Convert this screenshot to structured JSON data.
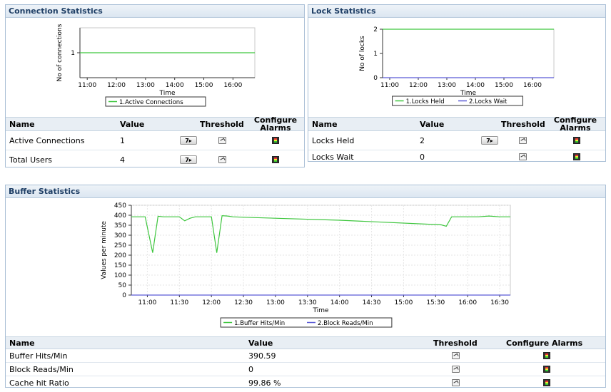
{
  "colors": {
    "green": "#3ec63e",
    "blue": "#5b5bd6",
    "header": "#1f3f66",
    "border": "#a9bfd6"
  },
  "connection": {
    "title": "Connection Statistics",
    "chart": {
      "ylabel": "No of connections",
      "xlabel": "Time",
      "yticks": [
        "1"
      ],
      "xticks": [
        "11:00",
        "12:00",
        "13:00",
        "14:00",
        "15:00",
        "16:00"
      ],
      "legend": [
        "1.Active Connections"
      ]
    },
    "table": {
      "headers": [
        "Name",
        "Value",
        "Threshold",
        "Configure Alarms"
      ],
      "rows": [
        {
          "name": "Active Connections",
          "value": "1",
          "btn": "7"
        },
        {
          "name": "Total Users",
          "value": "4",
          "btn": "7"
        }
      ]
    }
  },
  "lock": {
    "title": "Lock Statistics",
    "chart": {
      "ylabel": "No of locks",
      "xlabel": "Time",
      "yticks": [
        "2",
        "1",
        "0"
      ],
      "xticks": [
        "11:00",
        "12:00",
        "13:00",
        "14:00",
        "15:00",
        "16:00"
      ],
      "legend": [
        "1.Locks Held",
        "2.Locks Wait"
      ]
    },
    "table": {
      "headers": [
        "Name",
        "Value",
        "Threshold",
        "Configure Alarms"
      ],
      "rows": [
        {
          "name": "Locks Held",
          "value": "2",
          "btn": "7"
        },
        {
          "name": "Locks Wait",
          "value": "0"
        }
      ]
    }
  },
  "buffer": {
    "title": "Buffer Statistics",
    "chart": {
      "ylabel": "Values per minute",
      "xlabel": "Time",
      "yticks": [
        "450",
        "400",
        "350",
        "300",
        "250",
        "200",
        "150",
        "100",
        "50",
        "0"
      ],
      "xticks": [
        "11:00",
        "11:30",
        "12:00",
        "12:30",
        "13:00",
        "13:30",
        "14:00",
        "14:30",
        "15:00",
        "15:30",
        "16:00",
        "16:30"
      ],
      "legend": [
        "1.Buffer Hits/Min",
        "2.Block Reads/Min"
      ]
    },
    "table": {
      "headers": [
        "Name",
        "Value",
        "Threshold",
        "Configure Alarms"
      ],
      "rows": [
        {
          "name": "Buffer Hits/Min",
          "value": "390.59"
        },
        {
          "name": "Block Reads/Min",
          "value": "0"
        },
        {
          "name": "Cache hit Ratio",
          "value": "99.86 %"
        }
      ]
    }
  },
  "chart_data": [
    {
      "type": "line",
      "ylabel": "No of connections",
      "xlabel": "Time",
      "ylim": [
        0,
        2
      ],
      "x": [
        "10:45",
        "16:45"
      ],
      "series": [
        {
          "name": "1.Active Connections",
          "values": [
            1,
            1
          ]
        }
      ]
    },
    {
      "type": "line",
      "ylabel": "No of locks",
      "xlabel": "Time",
      "ylim": [
        0,
        2
      ],
      "x": [
        "10:45",
        "16:45"
      ],
      "series": [
        {
          "name": "1.Locks Held",
          "values": [
            2,
            2
          ]
        },
        {
          "name": "2.Locks Wait",
          "values": [
            0,
            0
          ]
        }
      ]
    },
    {
      "type": "line",
      "ylabel": "Values per minute",
      "xlabel": "Time",
      "ylim": [
        0,
        450
      ],
      "x": [
        "10:45",
        "10:58",
        "11:05",
        "11:10",
        "11:15",
        "11:30",
        "11:35",
        "11:40",
        "11:45",
        "11:50",
        "12:00",
        "12:05",
        "12:10",
        "12:15",
        "12:20",
        "12:30",
        "14:00",
        "15:35",
        "15:40",
        "15:45",
        "15:50",
        "16:00",
        "16:10",
        "16:20",
        "16:30",
        "16:40"
      ],
      "series": [
        {
          "name": "1.Buffer Hits/Min",
          "values": [
            392,
            392,
            212,
            395,
            392,
            392,
            372,
            385,
            392,
            392,
            392,
            212,
            398,
            396,
            392,
            390,
            375,
            352,
            345,
            392,
            392,
            392,
            392,
            396,
            392,
            392
          ]
        },
        {
          "name": "2.Block Reads/Min",
          "values": [
            0,
            0,
            0,
            0,
            0,
            0,
            0,
            0,
            0,
            0,
            0,
            0,
            0,
            0,
            0,
            0,
            0,
            0,
            0,
            0,
            0,
            0,
            0,
            0,
            0,
            0
          ]
        }
      ]
    }
  ]
}
